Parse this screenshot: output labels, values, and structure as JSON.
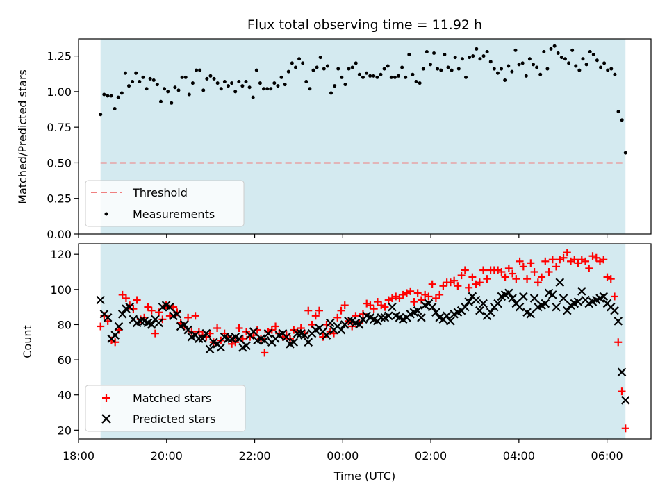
{
  "figure": {
    "title": "Flux total observing time = 11.92 h",
    "xlabel": "Time (UTC)",
    "shade_color": "#d4eaf0",
    "xticks": [
      {
        "t": -5.5,
        "label": "18:00"
      },
      {
        "t": -3.5,
        "label": "20:00"
      },
      {
        "t": -1.5,
        "label": "22:00"
      },
      {
        "t": 0.5,
        "label": "00:00"
      },
      {
        "t": 2.5,
        "label": "02:00"
      },
      {
        "t": 4.5,
        "label": "04:00"
      },
      {
        "t": 6.5,
        "label": "06:00"
      }
    ]
  },
  "chart_data": [
    {
      "type": "scatter",
      "ylabel": "Matched/Predicted stars",
      "x_unit": "hours (18:00 = -5.5)",
      "xlim": [
        -5.5,
        7.5
      ],
      "ylim": [
        0,
        1.37
      ],
      "yticks": [
        "0.00",
        "0.25",
        "0.50",
        "0.75",
        "1.00",
        "1.25"
      ],
      "shaded_interval": [
        -5.0,
        6.92
      ],
      "threshold": {
        "name": "Threshold",
        "value": 0.5,
        "color": "#f08080"
      },
      "legend": {
        "position": "lower-left",
        "entries": [
          "Threshold",
          "Measurements"
        ]
      },
      "series": [
        {
          "name": "Measurements",
          "color": "#000000",
          "x_start": -5.0,
          "x_end": 6.92,
          "values": [
            0.84,
            0.98,
            0.97,
            0.97,
            0.88,
            0.96,
            0.99,
            1.13,
            1.04,
            1.07,
            1.13,
            1.07,
            1.1,
            1.02,
            1.09,
            1.08,
            1.05,
            0.93,
            1.02,
            1.0,
            0.92,
            1.03,
            1.01,
            1.1,
            1.1,
            0.98,
            1.06,
            1.15,
            1.15,
            1.01,
            1.09,
            1.11,
            1.09,
            1.06,
            1.02,
            1.07,
            1.04,
            1.06,
            1.0,
            1.07,
            1.04,
            1.07,
            1.03,
            0.96,
            1.15,
            1.06,
            1.02,
            1.02,
            1.02,
            1.06,
            1.04,
            1.1,
            1.05,
            1.14,
            1.2,
            1.17,
            1.23,
            1.2,
            1.07,
            1.02,
            1.15,
            1.17,
            1.24,
            1.16,
            1.18,
            0.99,
            1.04,
            1.16,
            1.1,
            1.05,
            1.16,
            1.17,
            1.2,
            1.12,
            1.1,
            1.13,
            1.11,
            1.11,
            1.1,
            1.12,
            1.16,
            1.18,
            1.1,
            1.1,
            1.11,
            1.17,
            1.1,
            1.26,
            1.12,
            1.07,
            1.06,
            1.16,
            1.28,
            1.19,
            1.27,
            1.16,
            1.15,
            1.26,
            1.17,
            1.15,
            1.24,
            1.16,
            1.23,
            1.1,
            1.24,
            1.25,
            1.3,
            1.23,
            1.25,
            1.28,
            1.21,
            1.16,
            1.13,
            1.16,
            1.08,
            1.18,
            1.14,
            1.29,
            1.19,
            1.2,
            1.11,
            1.23,
            1.19,
            1.17,
            1.12,
            1.28,
            1.16,
            1.3,
            1.32,
            1.27,
            1.24,
            1.23,
            1.2,
            1.29,
            1.18,
            1.15,
            1.23,
            1.19,
            1.28,
            1.26,
            1.22,
            1.17,
            1.2,
            1.15,
            1.16,
            1.12,
            0.86,
            0.8,
            0.57
          ]
        }
      ]
    },
    {
      "type": "scatter",
      "ylabel": "Count",
      "x_unit": "hours (18:00 = -5.5)",
      "xlim": [
        -5.5,
        7.5
      ],
      "ylim": [
        15,
        126
      ],
      "yticks": [
        "20",
        "40",
        "60",
        "80",
        "100",
        "120"
      ],
      "shaded_interval": [
        -5.0,
        6.92
      ],
      "legend": {
        "position": "lower-left",
        "entries": [
          "Matched stars",
          "Predicted stars"
        ]
      },
      "series": [
        {
          "name": "Matched stars",
          "marker": "plus",
          "color": "#ff0000",
          "x_start": -5.0,
          "x_end": 6.92,
          "values": [
            79,
            85,
            82,
            71,
            70,
            77,
            97,
            95,
            91,
            89,
            94,
            83,
            84,
            90,
            88,
            75,
            87,
            83,
            91,
            85,
            90,
            87,
            81,
            79,
            84,
            76,
            85,
            76,
            74,
            73,
            75,
            70,
            78,
            71,
            75,
            73,
            69,
            70,
            78,
            72,
            76,
            73,
            74,
            77,
            72,
            64,
            76,
            77,
            79,
            75,
            73,
            74,
            72,
            77,
            76,
            78,
            75,
            88,
            80,
            85,
            88,
            73,
            80,
            76,
            75,
            84,
            88,
            91,
            82,
            79,
            85,
            81,
            86,
            92,
            91,
            89,
            93,
            91,
            90,
            94,
            95,
            96,
            95,
            97,
            98,
            99,
            93,
            98,
            94,
            97,
            96,
            103,
            95,
            97,
            102,
            104,
            104,
            105,
            102,
            108,
            111,
            101,
            107,
            103,
            104,
            111,
            106,
            111,
            111,
            111,
            110,
            107,
            112,
            109,
            106,
            116,
            113,
            106,
            115,
            110,
            104,
            107,
            116,
            110,
            117,
            113,
            117,
            118,
            121,
            116,
            117,
            115,
            117,
            116,
            112,
            119,
            118,
            116,
            117,
            107,
            106,
            96,
            70,
            42,
            21
          ]
        },
        {
          "name": "Predicted stars",
          "marker": "x",
          "color": "#000000",
          "x_start": -5.0,
          "x_end": 6.92,
          "values": [
            94,
            86,
            84,
            72,
            74,
            79,
            86,
            89,
            90,
            83,
            81,
            82,
            82,
            81,
            80,
            83,
            81,
            90,
            91,
            90,
            85,
            86,
            79,
            80,
            77,
            73,
            74,
            72,
            72,
            75,
            66,
            70,
            69,
            67,
            73,
            72,
            72,
            73,
            72,
            67,
            68,
            74,
            76,
            71,
            72,
            71,
            75,
            70,
            72,
            74,
            75,
            73,
            69,
            70,
            75,
            75,
            74,
            70,
            75,
            77,
            78,
            76,
            74,
            81,
            77,
            79,
            77,
            80,
            82,
            82,
            81,
            80,
            83,
            85,
            84,
            83,
            82,
            84,
            84,
            85,
            90,
            85,
            84,
            83,
            84,
            86,
            87,
            88,
            84,
            91,
            92,
            90,
            87,
            84,
            83,
            85,
            82,
            86,
            87,
            88,
            90,
            93,
            96,
            94,
            88,
            92,
            85,
            87,
            90,
            92,
            96,
            97,
            98,
            95,
            92,
            90,
            96,
            87,
            86,
            95,
            90,
            91,
            92,
            98,
            97,
            90,
            104,
            95,
            88,
            91,
            92,
            93,
            99,
            94,
            92,
            93,
            94,
            95,
            96,
            92,
            90,
            88,
            82,
            53,
            37
          ]
        }
      ]
    }
  ]
}
